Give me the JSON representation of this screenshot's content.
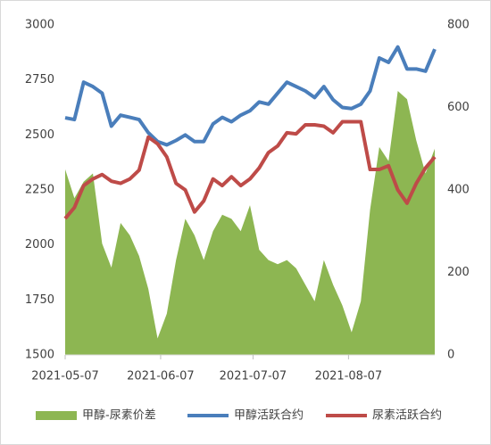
{
  "chart_data": {
    "type": "line",
    "x": [
      "2021-05-07",
      "2021-05-10",
      "2021-05-13",
      "2021-05-16",
      "2021-05-19",
      "2021-05-22",
      "2021-05-25",
      "2021-05-28",
      "2021-05-31",
      "2021-06-03",
      "2021-06-06",
      "2021-06-09",
      "2021-06-12",
      "2021-06-15",
      "2021-06-18",
      "2021-06-21",
      "2021-06-24",
      "2021-06-27",
      "2021-06-30",
      "2021-07-03",
      "2021-07-06",
      "2021-07-09",
      "2021-07-12",
      "2021-07-15",
      "2021-07-18",
      "2021-07-21",
      "2021-07-24",
      "2021-07-27",
      "2021-07-30",
      "2021-08-02",
      "2021-08-05",
      "2021-08-08",
      "2021-08-11",
      "2021-08-14",
      "2021-08-17",
      "2021-08-20",
      "2021-08-23",
      "2021-08-26",
      "2021-08-29",
      "2021-09-01",
      "2021-09-04"
    ],
    "xlim": [
      "2021-05-07",
      "2021-09-04"
    ],
    "xticks": [
      "2021-05-07",
      "2021-06-07",
      "2021-07-07",
      "2021-08-07"
    ],
    "ylim": [
      1500,
      3000
    ],
    "yticks": [
      1500,
      1750,
      2000,
      2250,
      2500,
      2750,
      3000
    ],
    "y2lim": [
      0,
      800
    ],
    "y2ticks": [
      0,
      200,
      400,
      600,
      800
    ],
    "series": [
      {
        "name": "甲醇-尿素价差",
        "type": "area",
        "axis": "y2",
        "color": "#8db652",
        "values": [
          450,
          380,
          420,
          440,
          270,
          212,
          320,
          290,
          240,
          160,
          40,
          100,
          230,
          330,
          290,
          230,
          300,
          340,
          330,
          300,
          363,
          255,
          230,
          220,
          230,
          210,
          170,
          130,
          230,
          170,
          120,
          55,
          130,
          352,
          504,
          470,
          640,
          620,
          520,
          440,
          500
        ]
      },
      {
        "name": "甲醇活跃合约",
        "type": "line",
        "color": "#4a7ebb",
        "values": [
          2578,
          2570,
          2740,
          2720,
          2690,
          2540,
          2590,
          2580,
          2570,
          2510,
          2470,
          2455,
          2475,
          2500,
          2470,
          2470,
          2550,
          2580,
          2560,
          2590,
          2610,
          2650,
          2640,
          2690,
          2740,
          2720,
          2700,
          2670,
          2720,
          2660,
          2625,
          2620,
          2640,
          2700,
          2850,
          2830,
          2900,
          2800,
          2800,
          2790,
          2890
        ]
      },
      {
        "name": "尿素活跃合约",
        "type": "line",
        "color": "#be4b48",
        "values": [
          2120,
          2170,
          2270,
          2300,
          2320,
          2290,
          2280,
          2300,
          2340,
          2490,
          2460,
          2400,
          2280,
          2250,
          2150,
          2200,
          2300,
          2270,
          2310,
          2270,
          2300,
          2350,
          2420,
          2450,
          2510,
          2505,
          2546,
          2546,
          2540,
          2510,
          2560,
          2560,
          2560,
          2343,
          2343,
          2360,
          2250,
          2190,
          2280,
          2350,
          2400
        ]
      }
    ]
  }
}
